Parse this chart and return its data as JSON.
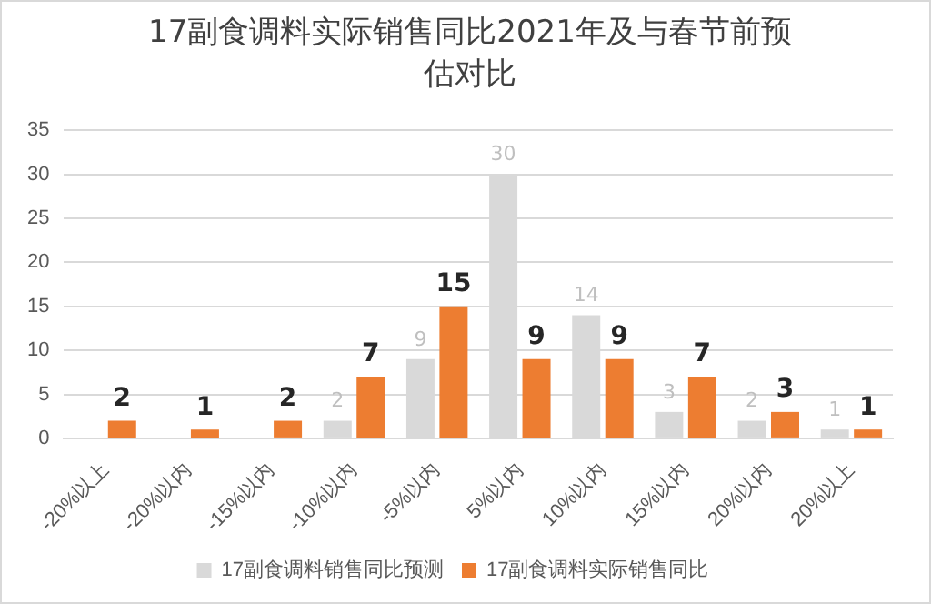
{
  "chart_data": {
    "type": "bar",
    "title": "17副食调料实际销售同比2021年及与春节前预估对比",
    "categories": [
      "-20%以上",
      "-20%以内",
      "-15%以内",
      "-10%以内",
      "-5%以内",
      "5%以内",
      "10%以内",
      "15%以内",
      "20%以内",
      "20%以上"
    ],
    "series": [
      {
        "name": "17副食调料销售同比预测",
        "color": "#d9d9d9",
        "values": [
          null,
          null,
          null,
          2,
          9,
          30,
          14,
          3,
          2,
          1
        ]
      },
      {
        "name": "17副食调料实际销售同比",
        "color": "#ed7d31",
        "values": [
          2,
          1,
          2,
          7,
          15,
          9,
          9,
          7,
          3,
          1
        ]
      }
    ],
    "ylim": [
      0,
      35
    ],
    "yticks": [
      0,
      5,
      10,
      15,
      20,
      25,
      30,
      35
    ],
    "grid": "y",
    "legend": "bottom",
    "data_labels": true
  }
}
